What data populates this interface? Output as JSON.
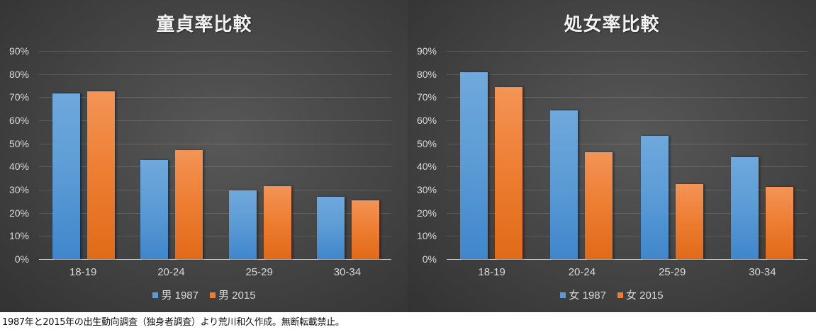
{
  "chart_data": [
    {
      "type": "bar",
      "title": "童貞率比較",
      "categories": [
        "18-19",
        "20-24",
        "25-29",
        "30-34"
      ],
      "series": [
        {
          "name": "男 1987",
          "color": "#5b9bd5",
          "values": [
            71.6,
            42.9,
            29.8,
            27.0
          ]
        },
        {
          "name": "男 2015",
          "color": "#ed7d31",
          "values": [
            72.6,
            47.0,
            31.5,
            25.5
          ]
        }
      ],
      "xlabel": "",
      "ylabel": "",
      "ylim": [
        0,
        90
      ],
      "yticks": [
        "0%",
        "10%",
        "20%",
        "30%",
        "40%",
        "50%",
        "60%",
        "70%",
        "80%",
        "90%"
      ],
      "grid": true,
      "legend_position": "bottom"
    },
    {
      "type": "bar",
      "title": "処女率比較",
      "categories": [
        "18-19",
        "20-24",
        "25-29",
        "30-34"
      ],
      "series": [
        {
          "name": "女 1987",
          "color": "#5b9bd5",
          "values": [
            80.9,
            64.4,
            53.4,
            44.2
          ]
        },
        {
          "name": "女 2015",
          "color": "#ed7d31",
          "values": [
            74.4,
            46.3,
            32.5,
            31.3
          ]
        }
      ],
      "xlabel": "",
      "ylabel": "",
      "ylim": [
        0,
        90
      ],
      "yticks": [
        "0%",
        "10%",
        "20%",
        "30%",
        "40%",
        "50%",
        "60%",
        "70%",
        "80%",
        "90%"
      ],
      "grid": true,
      "legend_position": "bottom"
    }
  ],
  "footer": {
    "caption": "1987年と2015年の出生動向調査（独身者調査）より荒川和久作成。無断転載禁止。"
  }
}
